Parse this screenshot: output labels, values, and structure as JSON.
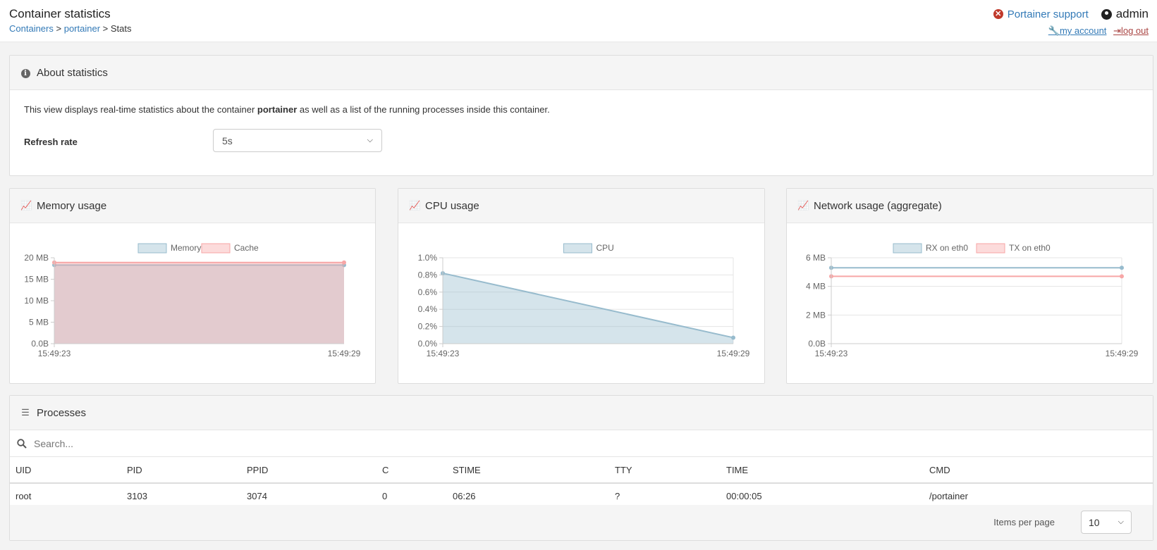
{
  "header": {
    "title": "Container statistics",
    "breadcrumb": [
      "Containers",
      "portainer",
      "Stats"
    ],
    "support_label": "Portainer support",
    "user": "admin",
    "my_account": "my account",
    "log_out": "log out"
  },
  "about": {
    "title": "About statistics",
    "text_before": "This view displays real-time statistics about the container ",
    "container_name": "portainer",
    "text_after": " as well as a list of the running processes inside this container.",
    "refresh_label": "Refresh rate",
    "refresh_value": "5s"
  },
  "panels": {
    "memory_title": "Memory usage",
    "cpu_title": "CPU usage",
    "network_title": "Network usage (aggregate)"
  },
  "chart_data": [
    {
      "type": "area",
      "x": [
        "15:49:23",
        "15:49:29"
      ],
      "series": [
        {
          "name": "Memory",
          "values": [
            18.3,
            18.3
          ],
          "color": "#97bbcd"
        },
        {
          "name": "Cache",
          "values": [
            18.9,
            18.9
          ],
          "color": "#f7a6a6"
        }
      ],
      "y_ticks": [
        "0.0B",
        "5 MB",
        "10 MB",
        "15 MB",
        "20 MB"
      ],
      "ylim": [
        0,
        20
      ],
      "grid": false,
      "legend": "top"
    },
    {
      "type": "area",
      "x": [
        "15:49:23",
        "15:49:29"
      ],
      "series": [
        {
          "name": "CPU",
          "values": [
            0.82,
            0.07
          ],
          "color": "#97bbcd"
        }
      ],
      "y_ticks": [
        "0.0%",
        "0.2%",
        "0.4%",
        "0.6%",
        "0.8%",
        "1.0%"
      ],
      "ylim": [
        0,
        1.0
      ],
      "grid": true,
      "legend": "top"
    },
    {
      "type": "line",
      "x": [
        "15:49:23",
        "15:49:29"
      ],
      "series": [
        {
          "name": "RX on eth0",
          "values": [
            5.3,
            5.3
          ],
          "color": "#97bbcd"
        },
        {
          "name": "TX on eth0",
          "values": [
            4.7,
            4.7
          ],
          "color": "#f7a6a6"
        }
      ],
      "y_ticks": [
        "0.0B",
        "2 MB",
        "4 MB",
        "6 MB"
      ],
      "ylim": [
        0,
        6
      ],
      "grid": true,
      "legend": "top"
    }
  ],
  "processes": {
    "title": "Processes",
    "search_placeholder": "Search...",
    "columns": [
      "UID",
      "PID",
      "PPID",
      "C",
      "STIME",
      "TTY",
      "TIME",
      "CMD"
    ],
    "rows": [
      [
        "root",
        "3103",
        "3074",
        "0",
        "06:26",
        "?",
        "00:00:05",
        "/portainer"
      ]
    ],
    "items_per_page_label": "Items per page",
    "items_per_page_value": "10"
  }
}
